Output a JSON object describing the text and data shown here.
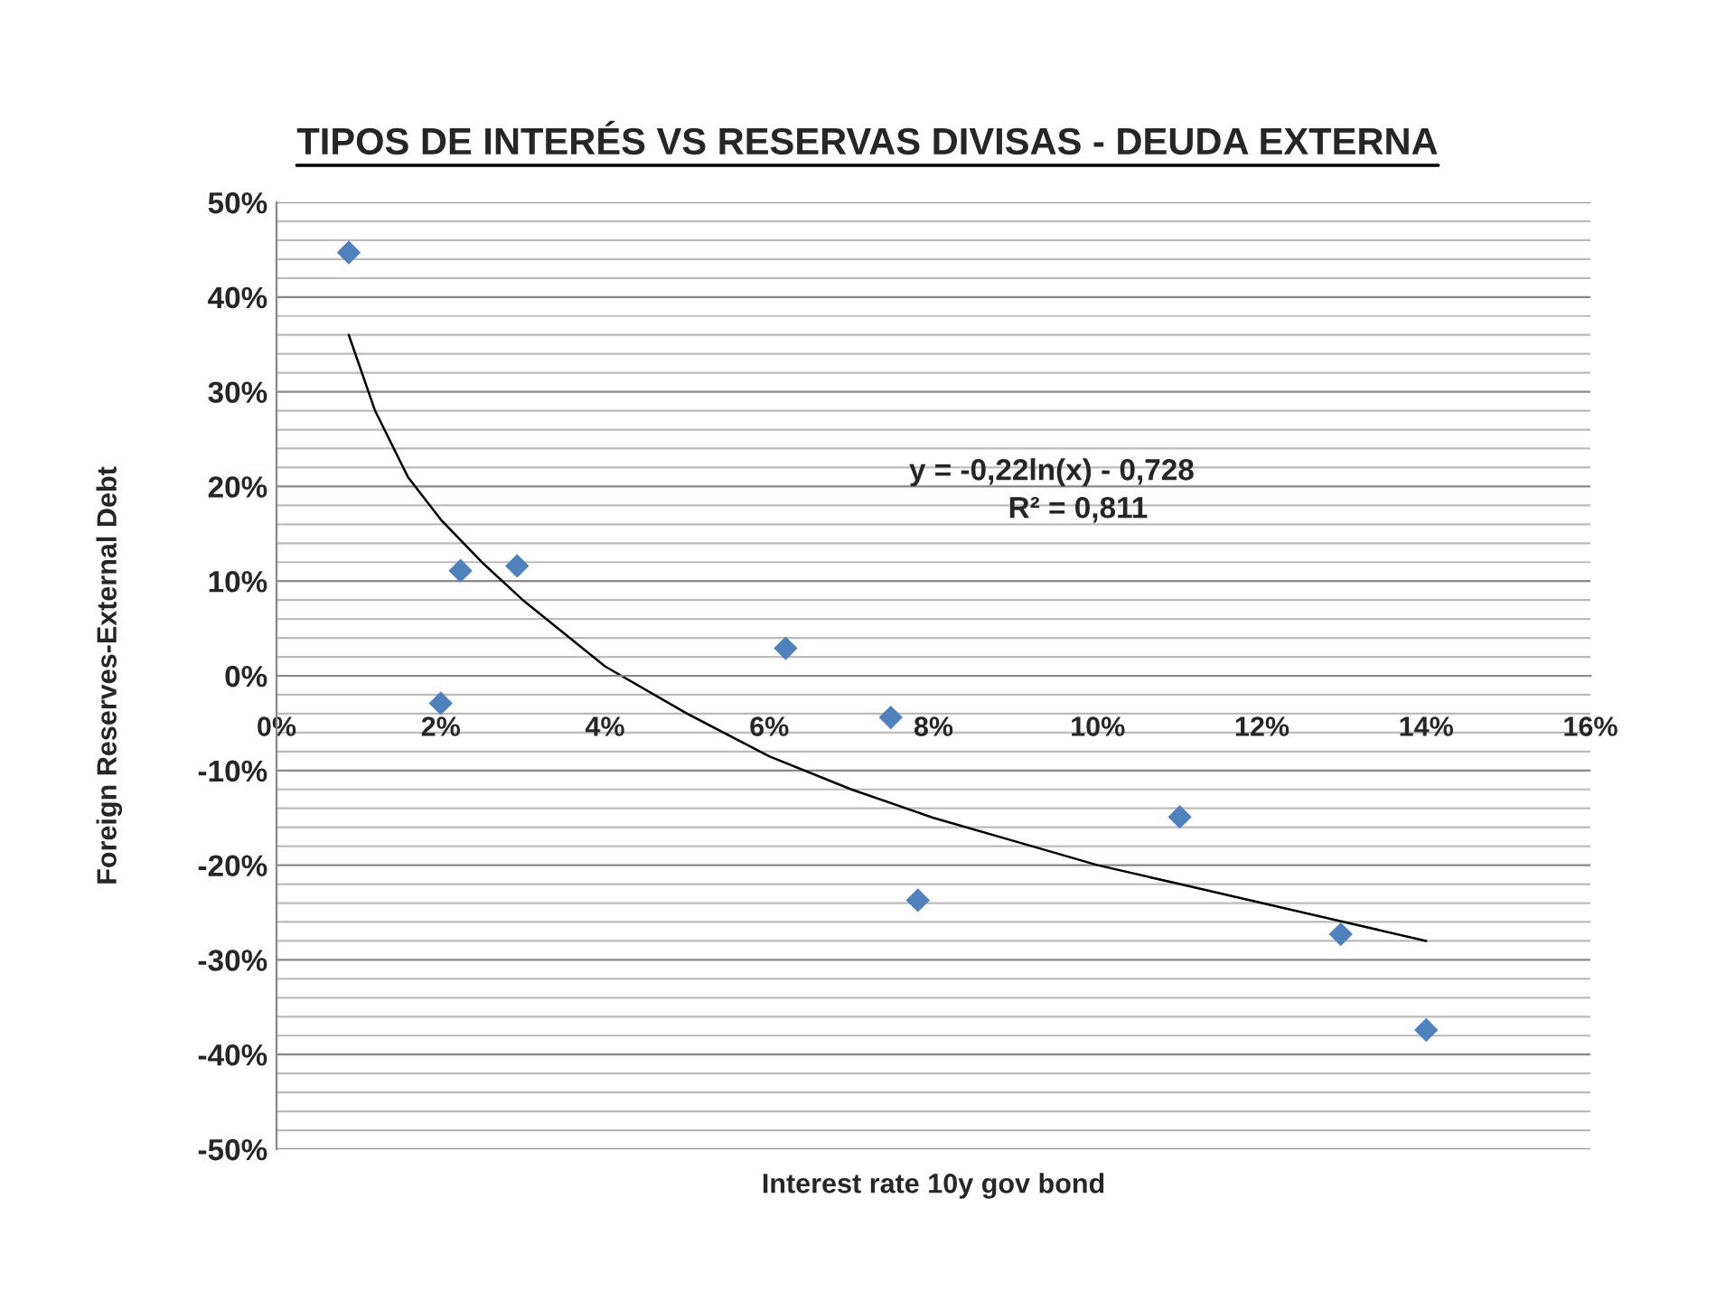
{
  "chart_data": {
    "type": "scatter",
    "title": "TIPOS DE INTERÉS VS RESERVAS DIVISAS - DEUDA EXTERNA",
    "xlabel": "Interest rate 10y gov bond",
    "ylabel": "Foreign Reserves-External Debt",
    "annotations": [
      "y = -0,22ln(x) - 0,728",
      "R² = 0,811"
    ],
    "series": [
      {
        "color": "#4f81bd",
        "marker": "diamond",
        "x": [
          0.88,
          2.0,
          2.24,
          2.93,
          6.2,
          7.48,
          7.81,
          11.0,
          12.96,
          14.0
        ],
        "values": [
          44.7,
          -2.9,
          11.1,
          11.6,
          2.9,
          -4.4,
          -23.7,
          -14.9,
          -27.3,
          -37.4
        ]
      },
      {
        "type": "line",
        "color": "#000000",
        "marker": "none",
        "line_style": "solid",
        "x": [
          0.88,
          1.2,
          1.6,
          2,
          2.5,
          3,
          4,
          5,
          6,
          7,
          8,
          9,
          10,
          11,
          12,
          13,
          14
        ],
        "values": [
          36,
          28,
          21,
          16.5,
          12,
          8,
          1,
          -4,
          -8.5,
          -12,
          -15,
          -17.5,
          -20,
          -22,
          -24,
          -26,
          -28
        ]
      }
    ],
    "xlim": [
      0,
      16
    ],
    "ylim": [
      -50,
      50
    ],
    "xticks": [
      {
        "value": 0,
        "label": "0%"
      },
      {
        "value": 2,
        "label": "2%"
      },
      {
        "value": 4,
        "label": "4%"
      },
      {
        "value": 6,
        "label": "6%"
      },
      {
        "value": 8,
        "label": "8%"
      },
      {
        "value": 10,
        "label": "10%"
      },
      {
        "value": 12,
        "label": "12%"
      },
      {
        "value": 14,
        "label": "14%"
      },
      {
        "value": 16,
        "label": "16%"
      }
    ],
    "yticks": [
      {
        "value": -50,
        "label": "-50%"
      },
      {
        "value": -48,
        "label": null
      },
      {
        "value": -46,
        "label": null
      },
      {
        "value": -44,
        "label": null
      },
      {
        "value": -42,
        "label": null
      },
      {
        "value": -40,
        "label": "-40%"
      },
      {
        "value": -38,
        "label": null
      },
      {
        "value": -36,
        "label": null
      },
      {
        "value": -34,
        "label": null
      },
      {
        "value": -32,
        "label": null
      },
      {
        "value": -30,
        "label": "-30%"
      },
      {
        "value": -28,
        "label": null
      },
      {
        "value": -26,
        "label": null
      },
      {
        "value": -24,
        "label": null
      },
      {
        "value": -22,
        "label": null
      },
      {
        "value": -20,
        "label": "-20%"
      },
      {
        "value": -18,
        "label": null
      },
      {
        "value": -16,
        "label": null
      },
      {
        "value": -14,
        "label": null
      },
      {
        "value": -12,
        "label": null
      },
      {
        "value": -10,
        "label": "-10%"
      },
      {
        "value": -8,
        "label": null
      },
      {
        "value": -6,
        "label": null
      },
      {
        "value": -4,
        "label": null
      },
      {
        "value": -2,
        "label": null
      },
      {
        "value": 0,
        "label": "0%"
      },
      {
        "value": 2,
        "label": null
      },
      {
        "value": 4,
        "label": null
      },
      {
        "value": 6,
        "label": null
      },
      {
        "value": 8,
        "label": null
      },
      {
        "value": 10,
        "label": "10%"
      },
      {
        "value": 12,
        "label": null
      },
      {
        "value": 14,
        "label": null
      },
      {
        "value": 16,
        "label": null
      },
      {
        "value": 18,
        "label": null
      },
      {
        "value": 20,
        "label": "20%"
      },
      {
        "value": 22,
        "label": null
      },
      {
        "value": 24,
        "label": null
      },
      {
        "value": 26,
        "label": null
      },
      {
        "value": 28,
        "label": null
      },
      {
        "value": 30,
        "label": "30%"
      },
      {
        "value": 32,
        "label": null
      },
      {
        "value": 34,
        "label": null
      },
      {
        "value": 36,
        "label": null
      },
      {
        "value": 38,
        "label": null
      },
      {
        "value": 40,
        "label": "40%"
      },
      {
        "value": 42,
        "label": null
      },
      {
        "value": 44,
        "label": null
      },
      {
        "value": 46,
        "label": null
      },
      {
        "value": 48,
        "label": null
      },
      {
        "value": 50,
        "label": "50%"
      }
    ],
    "grid": "y",
    "legend": false
  }
}
